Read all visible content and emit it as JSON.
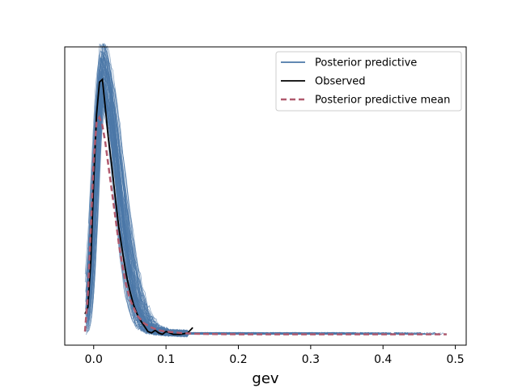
{
  "chart_data": {
    "type": "line",
    "title": "",
    "xlabel": "gev",
    "ylabel": "",
    "xlim": [
      -0.04,
      0.515
    ],
    "ylim": [
      -0.4,
      10.6
    ],
    "xticks": [
      0.0,
      0.1,
      0.2,
      0.3,
      0.4,
      0.5
    ],
    "xtick_labels": [
      "0.0",
      "0.1",
      "0.2",
      "0.3",
      "0.4",
      "0.5"
    ],
    "yticks_visible": false,
    "grid": false,
    "legend": {
      "placement": "top-right",
      "entries": [
        {
          "label": "Posterior predictive",
          "color": "#4C78A8",
          "style": "solid"
        },
        {
          "label": "Observed",
          "color": "#000000",
          "style": "solid"
        },
        {
          "label": "Posterior predictive mean",
          "color": "#B05A6E",
          "style": "dashed"
        }
      ]
    },
    "series": [
      {
        "name": "Observed",
        "color": "#000000",
        "style": "solid",
        "x": [
          -0.012,
          -0.008,
          -0.004,
          0.0,
          0.004,
          0.008,
          0.012,
          0.016,
          0.02,
          0.025,
          0.03,
          0.035,
          0.04,
          0.045,
          0.05,
          0.055,
          0.06,
          0.065,
          0.07,
          0.075,
          0.08,
          0.085,
          0.09,
          0.095,
          0.1,
          0.11,
          0.12,
          0.13,
          0.137
        ],
        "y": [
          0.75,
          1.0,
          2.7,
          5.6,
          8.1,
          9.3,
          9.4,
          8.4,
          7.3,
          6.2,
          5.0,
          3.9,
          3.0,
          2.2,
          1.6,
          1.1,
          0.75,
          0.5,
          0.3,
          0.1,
          0.05,
          0.15,
          0.05,
          0.0,
          0.1,
          0.0,
          0.0,
          0.05,
          0.25
        ]
      },
      {
        "name": "Posterior predictive mean",
        "color": "#B05A6E",
        "style": "dashed",
        "x": [
          -0.012,
          -0.008,
          -0.004,
          0.0,
          0.004,
          0.008,
          0.012,
          0.016,
          0.02,
          0.025,
          0.03,
          0.035,
          0.04,
          0.045,
          0.05,
          0.06,
          0.07,
          0.08,
          0.09,
          0.1,
          0.12,
          0.14,
          0.16,
          0.2,
          0.3,
          0.4,
          0.488
        ],
        "y": [
          0.1,
          1.5,
          3.9,
          6.4,
          7.8,
          8.0,
          7.7,
          7.1,
          6.3,
          5.3,
          4.3,
          3.3,
          2.5,
          1.8,
          1.3,
          0.7,
          0.4,
          0.25,
          0.15,
          0.1,
          0.05,
          0.02,
          0.01,
          0.0,
          0.0,
          0.0,
          0.0
        ]
      }
    ],
    "posterior_predictive": {
      "name": "Posterior predictive",
      "color": "#4C78A8",
      "x_range": [
        -0.012,
        0.49
      ],
      "peak_range": [
        8.2,
        10.4
      ],
      "tail_max_x": 0.49
    }
  }
}
